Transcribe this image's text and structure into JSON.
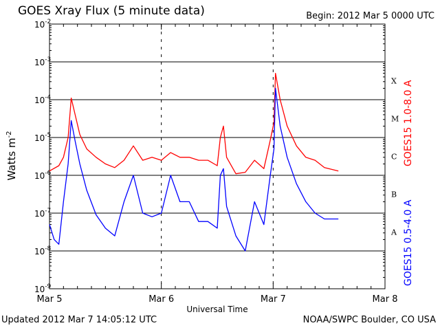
{
  "header": {
    "title": "GOES Xray Flux (5 minute data)",
    "begin": "Begin:  2012 Mar 5 0000 UTC"
  },
  "footer": {
    "updated": "Updated 2012 Mar  7 14:05:12 UTC",
    "credit": "NOAA/SWPC Boulder, CO USA"
  },
  "chart_data": {
    "type": "line",
    "xlabel": "Universal Time",
    "ylabel": "Watts m",
    "ylabel_superscript": "-2",
    "y_scale": "log",
    "ylim": [
      1e-09,
      0.01
    ],
    "y_tick_bases": [
      "10",
      "10",
      "10",
      "10",
      "10",
      "10",
      "10",
      "10"
    ],
    "y_tick_exponents": [
      "-9",
      "-8",
      "-7",
      "-6",
      "-5",
      "-4",
      "-3",
      "-2"
    ],
    "xlim": [
      "2012-03-05 00:00",
      "2012-03-08 00:00"
    ],
    "x_ticks": [
      "Mar 5",
      "Mar 6",
      "Mar 7",
      "Mar 8"
    ],
    "grid": "horizontal lines at decades 1e-8 to 1e-3",
    "flare_classes": [
      "A",
      "B",
      "C",
      "M",
      "X"
    ],
    "series": [
      {
        "name": "GOES15 1.0-8.0 A",
        "color": "#ff0000",
        "points": [
          [
            "2012-03-05 00:00",
            1.3e-06
          ],
          [
            "2012-03-05 02:00",
            1.8e-06
          ],
          [
            "2012-03-05 03:00",
            3e-06
          ],
          [
            "2012-03-05 04:00",
            1e-05
          ],
          [
            "2012-03-05 04:40",
            0.00011
          ],
          [
            "2012-03-05 05:30",
            4e-05
          ],
          [
            "2012-03-05 06:30",
            1.2e-05
          ],
          [
            "2012-03-05 08:00",
            5e-06
          ],
          [
            "2012-03-05 10:00",
            3e-06
          ],
          [
            "2012-03-05 12:00",
            2e-06
          ],
          [
            "2012-03-05 14:00",
            1.6e-06
          ],
          [
            "2012-03-05 16:00",
            2.5e-06
          ],
          [
            "2012-03-05 18:00",
            6e-06
          ],
          [
            "2012-03-05 20:00",
            2.5e-06
          ],
          [
            "2012-03-05 22:00",
            3e-06
          ],
          [
            "2012-03-06 00:00",
            2.5e-06
          ],
          [
            "2012-03-06 02:00",
            4e-06
          ],
          [
            "2012-03-06 04:00",
            3e-06
          ],
          [
            "2012-03-06 06:00",
            3e-06
          ],
          [
            "2012-03-06 08:00",
            2.5e-06
          ],
          [
            "2012-03-06 10:00",
            2.5e-06
          ],
          [
            "2012-03-06 12:00",
            1.8e-06
          ],
          [
            "2012-03-06 12:40",
            1e-05
          ],
          [
            "2012-03-06 13:20",
            2e-05
          ],
          [
            "2012-03-06 14:00",
            3e-06
          ],
          [
            "2012-03-06 16:00",
            1.1e-06
          ],
          [
            "2012-03-06 18:00",
            1.2e-06
          ],
          [
            "2012-03-06 20:00",
            2.5e-06
          ],
          [
            "2012-03-06 22:00",
            1.5e-06
          ],
          [
            "2012-03-06 23:20",
            8e-06
          ],
          [
            "2012-03-07 00:10",
            2.5e-05
          ],
          [
            "2012-03-07 00:30",
            0.0005
          ],
          [
            "2012-03-07 01:30",
            0.0001
          ],
          [
            "2012-03-07 03:00",
            2e-05
          ],
          [
            "2012-03-07 05:00",
            6e-06
          ],
          [
            "2012-03-07 07:00",
            3e-06
          ],
          [
            "2012-03-07 09:00",
            2.5e-06
          ],
          [
            "2012-03-07 11:00",
            1.6e-06
          ],
          [
            "2012-03-07 14:00",
            1.3e-06
          ]
        ]
      },
      {
        "name": "GOES15 0.5-4.0 A",
        "color": "#0000ff",
        "points": [
          [
            "2012-03-05 00:00",
            5e-08
          ],
          [
            "2012-03-05 01:00",
            2e-08
          ],
          [
            "2012-03-05 02:00",
            1.5e-08
          ],
          [
            "2012-03-05 03:00",
            2e-07
          ],
          [
            "2012-03-05 04:00",
            2e-06
          ],
          [
            "2012-03-05 04:40",
            2.8e-05
          ],
          [
            "2012-03-05 05:30",
            8e-06
          ],
          [
            "2012-03-05 06:30",
            2e-06
          ],
          [
            "2012-03-05 08:00",
            4e-07
          ],
          [
            "2012-03-05 10:00",
            9e-08
          ],
          [
            "2012-03-05 12:00",
            4e-08
          ],
          [
            "2012-03-05 14:00",
            2.5e-08
          ],
          [
            "2012-03-05 16:00",
            2e-07
          ],
          [
            "2012-03-05 18:00",
            1e-06
          ],
          [
            "2012-03-05 20:00",
            1e-07
          ],
          [
            "2012-03-05 22:00",
            8e-08
          ],
          [
            "2012-03-06 00:00",
            1e-07
          ],
          [
            "2012-03-06 02:00",
            1e-06
          ],
          [
            "2012-03-06 04:00",
            2e-07
          ],
          [
            "2012-03-06 06:00",
            2e-07
          ],
          [
            "2012-03-06 08:00",
            6e-08
          ],
          [
            "2012-03-06 10:00",
            6e-08
          ],
          [
            "2012-03-06 12:00",
            4e-08
          ],
          [
            "2012-03-06 12:40",
            1e-06
          ],
          [
            "2012-03-06 13:20",
            1.5e-06
          ],
          [
            "2012-03-06 14:00",
            1.5e-07
          ],
          [
            "2012-03-06 16:00",
            2.5e-08
          ],
          [
            "2012-03-06 18:00",
            1e-08
          ],
          [
            "2012-03-06 20:00",
            2e-07
          ],
          [
            "2012-03-06 22:00",
            5e-08
          ],
          [
            "2012-03-06 23:20",
            9e-07
          ],
          [
            "2012-03-07 00:10",
            5e-06
          ],
          [
            "2012-03-07 00:30",
            0.0002
          ],
          [
            "2012-03-07 01:30",
            2e-05
          ],
          [
            "2012-03-07 03:00",
            3e-06
          ],
          [
            "2012-03-07 05:00",
            6e-07
          ],
          [
            "2012-03-07 07:00",
            2e-07
          ],
          [
            "2012-03-07 09:00",
            1e-07
          ],
          [
            "2012-03-07 11:00",
            7e-08
          ],
          [
            "2012-03-07 14:00",
            7e-08
          ]
        ]
      }
    ]
  }
}
